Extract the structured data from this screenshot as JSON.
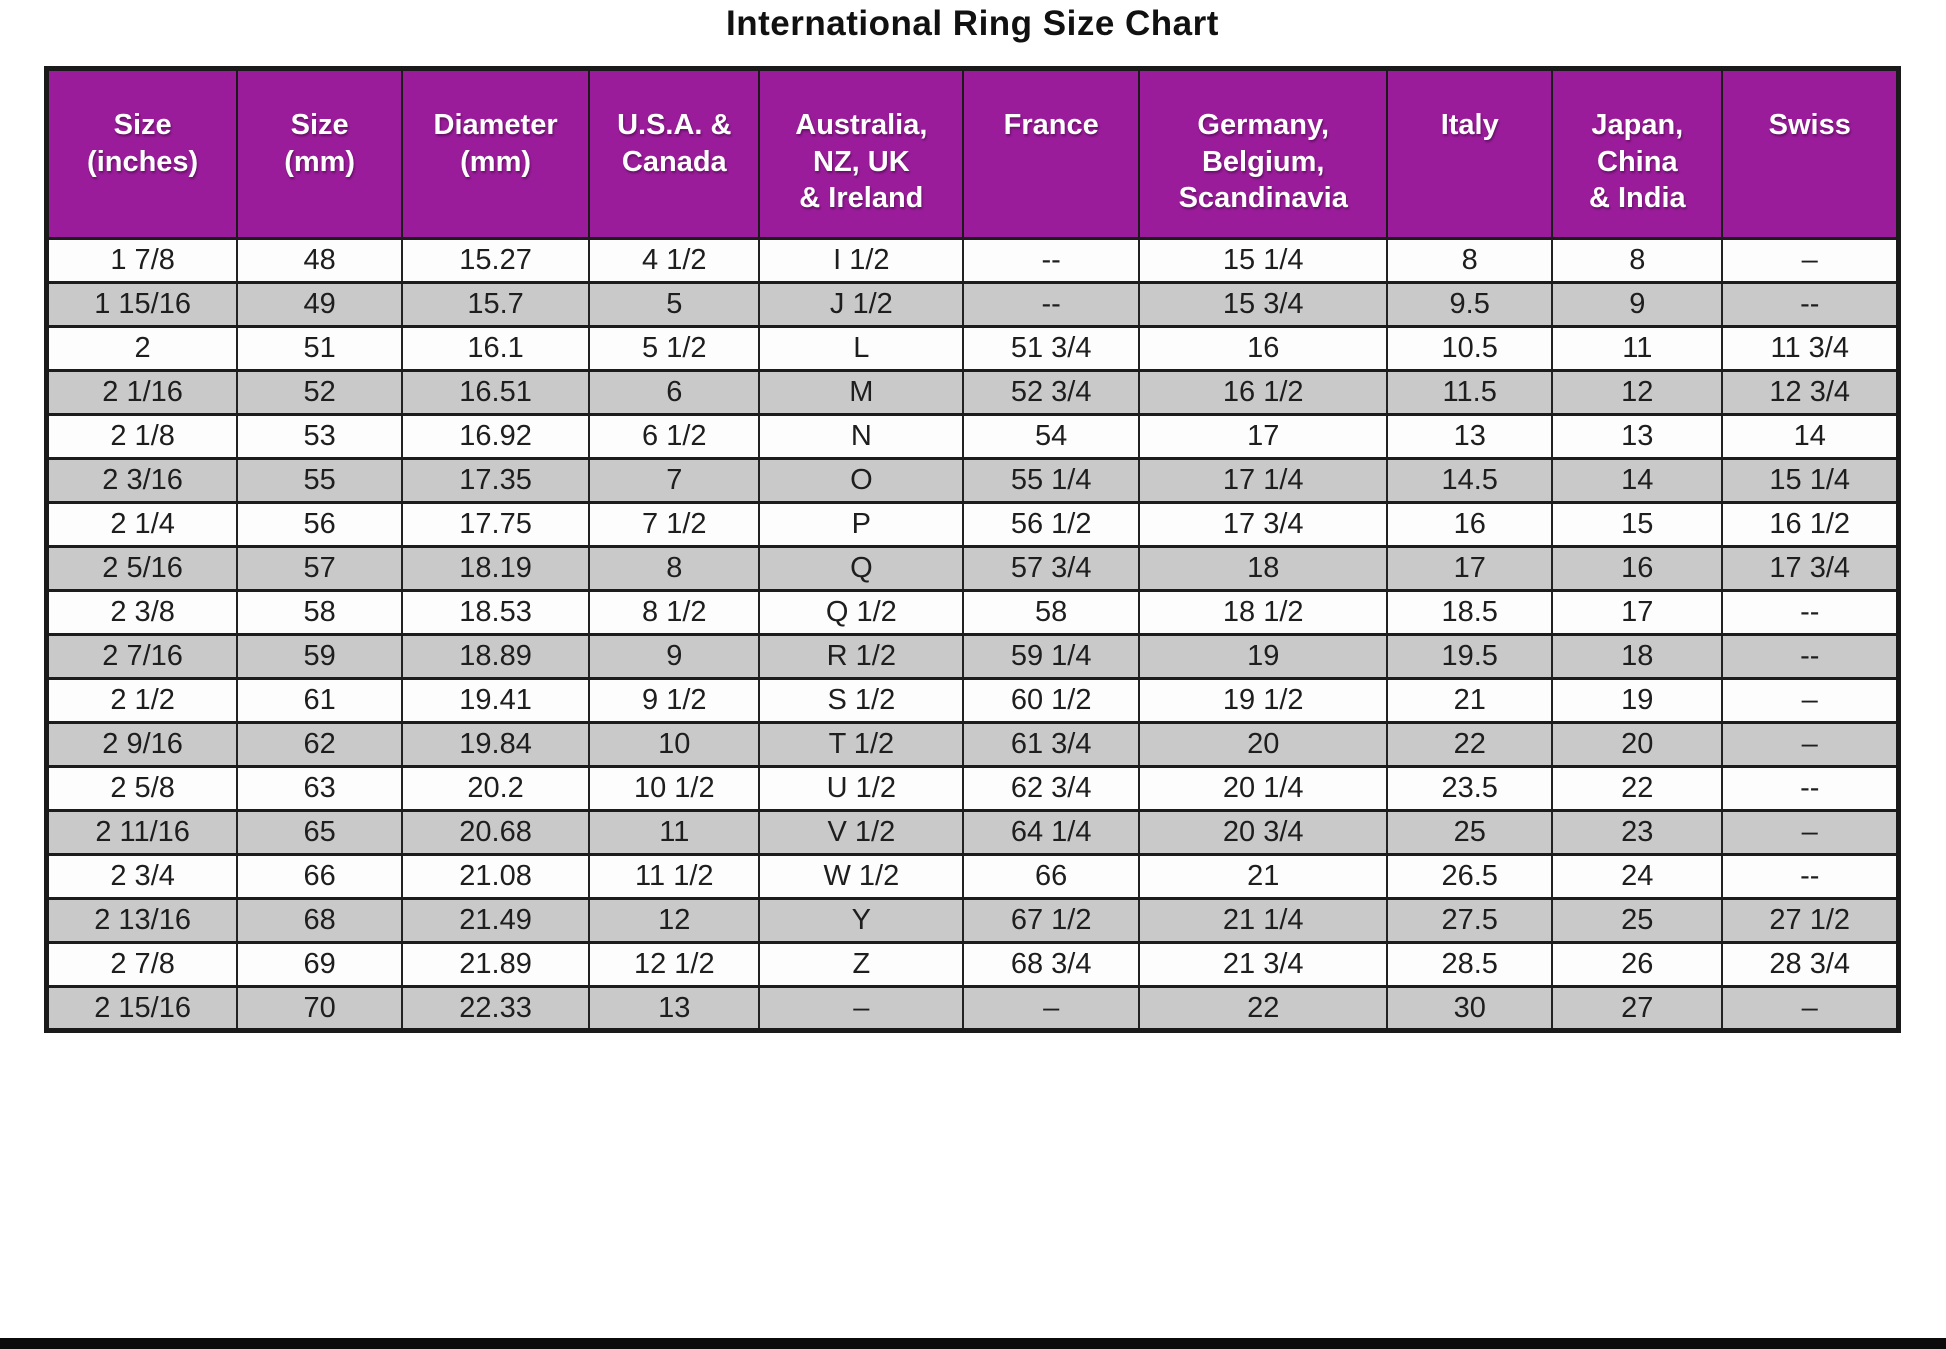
{
  "page": {
    "title": "International Ring Size Chart"
  },
  "colors": {
    "header_bg": "#9a1c9a",
    "header_text": "#ffffff",
    "row_bg": "#fdfdfd",
    "row_alt_bg": "#c9c9c9",
    "border": "#1a1a1a",
    "title_text": "#111111",
    "bottom_bar": "#0b0b0b"
  },
  "chart_data": {
    "type": "table",
    "title": "International Ring Size Chart",
    "columns": [
      "Size\n(inches)",
      "Size\n(mm)",
      "Diameter\n(mm)",
      "U.S.A. &\nCanada",
      "Australia,\nNZ, UK\n& Ireland",
      "France",
      "Germany,\nBelgium,\nScandinavia",
      "Italy",
      "Japan,\nChina\n& India",
      "Swiss"
    ],
    "rows": [
      [
        "1 7/8",
        "48",
        "15.27",
        "4 1/2",
        "I 1/2",
        "--",
        "15 1/4",
        "8",
        "8",
        "–"
      ],
      [
        "1 15/16",
        "49",
        "15.7",
        "5",
        "J 1/2",
        "--",
        "15 3/4",
        "9.5",
        "9",
        "--"
      ],
      [
        "2",
        "51",
        "16.1",
        "5 1/2",
        "L",
        "51 3/4",
        "16",
        "10.5",
        "11",
        "11 3/4"
      ],
      [
        "2 1/16",
        "52",
        "16.51",
        "6",
        "M",
        "52 3/4",
        "16 1/2",
        "11.5",
        "12",
        "12 3/4"
      ],
      [
        "2 1/8",
        "53",
        "16.92",
        "6 1/2",
        "N",
        "54",
        "17",
        "13",
        "13",
        "14"
      ],
      [
        "2 3/16",
        "55",
        "17.35",
        "7",
        "O",
        "55 1/4",
        "17 1/4",
        "14.5",
        "14",
        "15 1/4"
      ],
      [
        "2 1/4",
        "56",
        "17.75",
        "7 1/2",
        "P",
        "56 1/2",
        "17 3/4",
        "16",
        "15",
        "16 1/2"
      ],
      [
        "2 5/16",
        "57",
        "18.19",
        "8",
        "Q",
        "57 3/4",
        "18",
        "17",
        "16",
        "17 3/4"
      ],
      [
        "2 3/8",
        "58",
        "18.53",
        "8 1/2",
        "Q 1/2",
        "58",
        "18 1/2",
        "18.5",
        "17",
        "--"
      ],
      [
        "2 7/16",
        "59",
        "18.89",
        "9",
        "R 1/2",
        "59 1/4",
        "19",
        "19.5",
        "18",
        "--"
      ],
      [
        "2 1/2",
        "61",
        "19.41",
        "9 1/2",
        "S 1/2",
        "60 1/2",
        "19 1/2",
        "21",
        "19",
        "–"
      ],
      [
        "2 9/16",
        "62",
        "19.84",
        "10",
        "T 1/2",
        "61 3/4",
        "20",
        "22",
        "20",
        "–"
      ],
      [
        "2 5/8",
        "63",
        "20.2",
        "10 1/2",
        "U 1/2",
        "62 3/4",
        "20 1/4",
        "23.5",
        "22",
        "--"
      ],
      [
        "2 11/16",
        "65",
        "20.68",
        "11",
        "V 1/2",
        "64 1/4",
        "20 3/4",
        "25",
        "23",
        "–"
      ],
      [
        "2 3/4",
        "66",
        "21.08",
        "11 1/2",
        "W 1/2",
        "66",
        "21",
        "26.5",
        "24",
        "--"
      ],
      [
        "2 13/16",
        "68",
        "21.49",
        "12",
        "Y",
        "67 1/2",
        "21 1/4",
        "27.5",
        "25",
        "27 1/2"
      ],
      [
        "2 7/8",
        "69",
        "21.89",
        "12 1/2",
        "Z",
        "68 3/4",
        "21 3/4",
        "28.5",
        "26",
        "28 3/4"
      ],
      [
        "2 15/16",
        "70",
        "22.33",
        "13",
        "–",
        "–",
        "22",
        "30",
        "27",
        "–"
      ]
    ],
    "layout": {
      "grid": "on",
      "alternating_row_shading": true,
      "header_position": "top"
    }
  }
}
